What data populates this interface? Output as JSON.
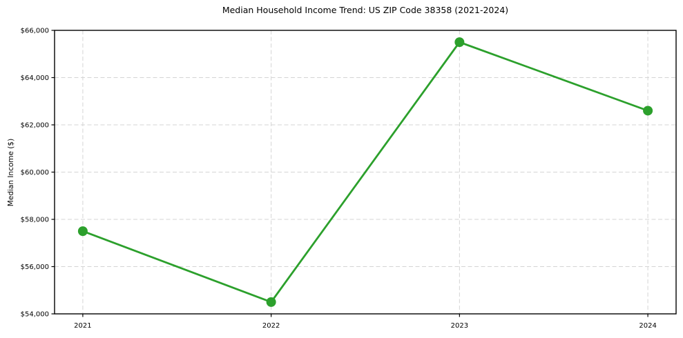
{
  "chart_data": {
    "type": "line",
    "title": "Median Household Income Trend: US ZIP Code 38358 (2021-2024)",
    "xlabel": "",
    "ylabel": "Median Income ($)",
    "x": [
      2021,
      2022,
      2023,
      2024
    ],
    "x_tick_labels": [
      "2021",
      "2022",
      "2023",
      "2024"
    ],
    "series": [
      {
        "name": "Median household income",
        "values": [
          57500,
          54500,
          65500,
          62600
        ]
      }
    ],
    "xlim": [
      2020.85,
      2024.15
    ],
    "ylim": [
      54000,
      66000
    ],
    "yticks": [
      54000,
      56000,
      58000,
      60000,
      62000,
      64000,
      66000
    ],
    "y_tick_labels": [
      "$54,000",
      "$56,000",
      "$58,000",
      "$60,000",
      "$62,000",
      "$64,000",
      "$66,000"
    ],
    "grid": true,
    "grid_style": "dashed",
    "legend": false,
    "line_color": "#2ca02c",
    "marker_color": "#2ca02c",
    "grid_color": "#d4d4d4",
    "spine_color": "#000000",
    "background": "#ffffff"
  }
}
